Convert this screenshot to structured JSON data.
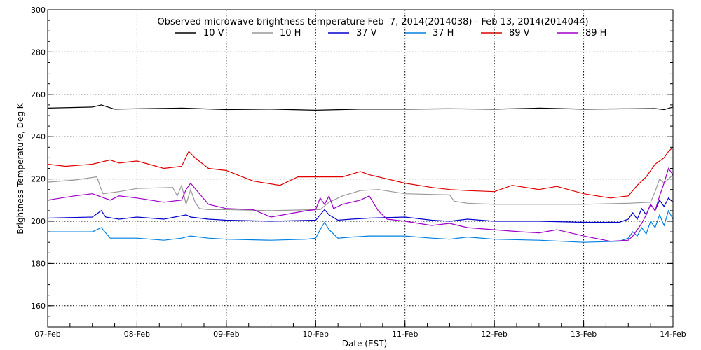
{
  "chart_data": {
    "type": "line",
    "title": "Observed microwave brightness temperature Feb  7, 2014(2014038) - Feb 13, 2014(2014044)",
    "xlabel": "Date (EST)",
    "ylabel": "Brightness Temperature, Deg K",
    "xlim": [
      0,
      7
    ],
    "ylim": [
      150,
      300
    ],
    "grid": true,
    "legend_position": "top",
    "x_tick_labels": [
      "07-Feb",
      "08-Feb",
      "09-Feb",
      "10-Feb",
      "11-Feb",
      "12-Feb",
      "13-Feb",
      "14-Feb"
    ],
    "y_ticks": [
      160,
      180,
      200,
      220,
      240,
      260,
      280,
      300
    ],
    "series": [
      {
        "name": "10 V",
        "color": "#000000",
        "x": [
          0,
          0.5,
          0.6,
          0.75,
          1.0,
          1.5,
          2.0,
          2.5,
          3.0,
          3.5,
          4.0,
          4.5,
          5.0,
          5.5,
          6.0,
          6.5,
          6.8,
          6.9,
          7.0
        ],
        "y": [
          253.5,
          254,
          255,
          253,
          253.2,
          253.5,
          252.8,
          253,
          252.5,
          253,
          253,
          253.2,
          253,
          253.5,
          253,
          253.2,
          253.3,
          252.8,
          254
        ]
      },
      {
        "name": "10 H",
        "color": "#999999",
        "x": [
          0,
          0.3,
          0.55,
          0.6,
          0.62,
          0.8,
          1.0,
          1.4,
          1.45,
          1.5,
          1.55,
          1.6,
          1.65,
          1.7,
          1.8,
          2.0,
          2.5,
          3.0,
          3.05,
          3.15,
          3.3,
          3.5,
          3.7,
          4.0,
          4.5,
          4.55,
          4.7,
          5.0,
          5.5,
          6.0,
          6.5,
          6.75,
          6.8,
          6.85,
          6.9,
          7.0
        ],
        "y": [
          218.5,
          219.5,
          221,
          215,
          213,
          214,
          215.5,
          216,
          212,
          217,
          208,
          215,
          209,
          206,
          205.5,
          205.5,
          205,
          205.5,
          205.5,
          209,
          212,
          214.5,
          215,
          213,
          212.5,
          209.5,
          208.5,
          208,
          208,
          208,
          208.5,
          209,
          214,
          220,
          218,
          222
        ]
      },
      {
        "name": "37 V",
        "color": "#0000cc",
        "x": [
          0,
          0.5,
          0.6,
          0.65,
          0.8,
          1.0,
          1.3,
          1.55,
          1.6,
          1.8,
          2.0,
          2.5,
          3.0,
          3.05,
          3.1,
          3.15,
          3.25,
          3.4,
          3.6,
          4.0,
          4.3,
          4.5,
          4.7,
          5.0,
          5.5,
          6.0,
          6.4,
          6.5,
          6.55,
          6.6,
          6.65,
          6.7,
          6.75,
          6.8,
          6.85,
          6.9,
          6.95,
          7.0
        ],
        "y": [
          201.5,
          202,
          205,
          202,
          201,
          202,
          201,
          203,
          202,
          201,
          200.5,
          200,
          200.5,
          203,
          205.5,
          203,
          200.5,
          201,
          201.5,
          202,
          200.5,
          200,
          201,
          200,
          200,
          199.5,
          199.5,
          201,
          204,
          201,
          206,
          203,
          208,
          205,
          210,
          207,
          211,
          209
        ]
      },
      {
        "name": "37 H",
        "color": "#0080e0",
        "x": [
          0,
          0.5,
          0.6,
          0.7,
          1.0,
          1.3,
          1.5,
          1.6,
          1.8,
          2.0,
          2.5,
          2.9,
          3.0,
          3.05,
          3.1,
          3.15,
          3.25,
          3.4,
          3.6,
          4.0,
          4.3,
          4.5,
          4.7,
          5.0,
          5.5,
          6.0,
          6.4,
          6.5,
          6.55,
          6.6,
          6.65,
          6.7,
          6.75,
          6.8,
          6.85,
          6.9,
          6.95,
          7.0
        ],
        "y": [
          195,
          195,
          197,
          192,
          192,
          191,
          192,
          193,
          192,
          191.5,
          191,
          191.5,
          192,
          196,
          199.5,
          196,
          192,
          192.5,
          193,
          193,
          192,
          191.5,
          192.5,
          191.5,
          191,
          190,
          190.5,
          192,
          195,
          193,
          197,
          194,
          200,
          197,
          203,
          198,
          205,
          201
        ]
      },
      {
        "name": "89 V",
        "color": "#e00000",
        "x": [
          0,
          0.2,
          0.5,
          0.7,
          0.8,
          1.0,
          1.3,
          1.5,
          1.58,
          1.65,
          1.8,
          2.0,
          2.3,
          2.6,
          2.8,
          3.0,
          3.3,
          3.5,
          3.6,
          3.8,
          4.0,
          4.3,
          4.5,
          4.7,
          5.0,
          5.2,
          5.5,
          5.7,
          6.0,
          6.3,
          6.4,
          6.5,
          6.6,
          6.7,
          6.8,
          6.9,
          6.95,
          7.0
        ],
        "y": [
          227,
          226,
          227,
          229,
          227.5,
          228.5,
          225,
          226,
          233,
          230,
          225,
          224,
          219,
          217,
          221,
          221,
          221,
          223.5,
          222,
          220,
          218,
          216,
          215,
          214.5,
          214,
          217,
          215,
          216.5,
          213,
          211,
          211.5,
          212,
          217,
          221,
          227,
          230,
          233,
          235
        ]
      },
      {
        "name": "89 H",
        "color": "#a000c8",
        "x": [
          0,
          0.3,
          0.5,
          0.7,
          0.8,
          1.0,
          1.3,
          1.5,
          1.55,
          1.6,
          1.7,
          1.8,
          2.0,
          2.3,
          2.5,
          2.7,
          2.9,
          3.0,
          3.05,
          3.1,
          3.15,
          3.2,
          3.3,
          3.5,
          3.6,
          3.7,
          3.8,
          4.0,
          4.3,
          4.5,
          4.7,
          5.0,
          5.3,
          5.5,
          5.7,
          6.0,
          6.3,
          6.5,
          6.55,
          6.6,
          6.65,
          6.7,
          6.75,
          6.8,
          6.85,
          6.9,
          6.95,
          7.0
        ],
        "y": [
          210,
          212,
          213,
          210,
          212,
          211,
          209,
          210,
          215,
          218,
          213,
          208,
          206,
          205.5,
          202,
          203.5,
          205,
          205.5,
          211,
          208,
          212,
          206,
          208,
          210,
          212,
          205,
          201,
          200,
          198,
          199,
          197,
          196,
          195,
          194.5,
          196,
          193,
          190.5,
          191,
          193,
          196,
          199,
          203,
          208,
          205,
          212,
          218,
          225,
          222
        ]
      }
    ]
  }
}
